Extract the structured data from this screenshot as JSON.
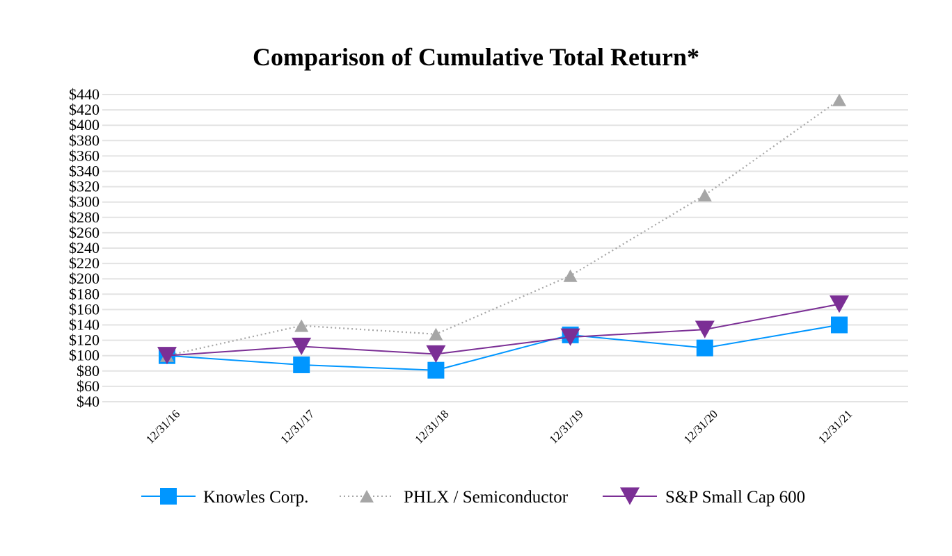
{
  "chart_data": {
    "type": "line",
    "title": "Comparison of Cumulative Total Return*",
    "xlabel": "",
    "ylabel": "",
    "categories": [
      "12/31/16",
      "12/31/17",
      "12/31/18",
      "12/31/19",
      "12/31/20",
      "12/31/21"
    ],
    "ylim": [
      40,
      440
    ],
    "yticks": [
      440,
      420,
      400,
      380,
      360,
      340,
      320,
      300,
      280,
      260,
      240,
      220,
      200,
      180,
      160,
      140,
      120,
      100,
      80,
      60,
      40
    ],
    "ytick_labels": [
      "$440",
      "$420",
      "$400",
      "$380",
      "$360",
      "$340",
      "$320",
      "$300",
      "$280",
      "$260",
      "$240",
      "$220",
      "$200",
      "$180",
      "$160",
      "$140",
      "$120",
      "$100",
      "$80",
      "$60",
      "$40"
    ],
    "grid": true,
    "legend_position": "bottom",
    "series": [
      {
        "name": "Knowles Corp.",
        "values": [
          100,
          88,
          81,
          127,
          110,
          140
        ],
        "color": "#0096ff",
        "marker": "square",
        "line_style": "solid"
      },
      {
        "name": "PHLX / Semiconductor",
        "values": [
          100,
          139,
          128,
          204,
          309,
          433
        ],
        "color": "#a6a6a6",
        "marker": "triangle-up",
        "line_style": "dotted"
      },
      {
        "name": "S&P Small Cap 600",
        "values": [
          100,
          112,
          102,
          124,
          134,
          167
        ],
        "color": "#7b2f95",
        "marker": "triangle-down",
        "line_style": "solid"
      }
    ]
  }
}
